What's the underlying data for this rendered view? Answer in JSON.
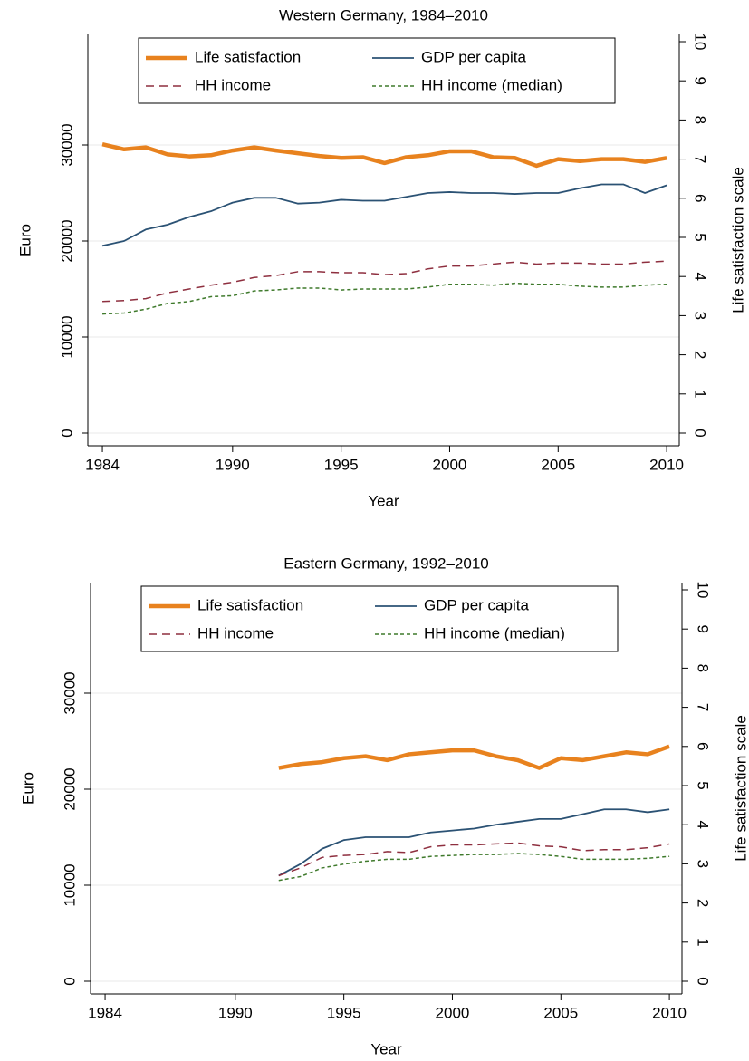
{
  "chart_data": [
    {
      "type": "line",
      "title": "Western Germany, 1984–2010",
      "x_label": "Year",
      "y_label": "Euro",
      "y2_label": "Life satisfaction scale",
      "x": [
        1984,
        1985,
        1986,
        1987,
        1988,
        1989,
        1990,
        1991,
        1992,
        1993,
        1994,
        1995,
        1996,
        1997,
        1998,
        1999,
        2000,
        2001,
        2002,
        2003,
        2004,
        2005,
        2006,
        2007,
        2008,
        2009,
        2010
      ],
      "xlim": [
        1983.33,
        2010.58
      ],
      "xticks": [
        1984,
        1990,
        1995,
        2000,
        2005,
        2010
      ],
      "ylim": [
        -1320,
        41510
      ],
      "yticks": [
        0,
        10000,
        20000,
        30000
      ],
      "y2lim": [
        -0.324,
        10.185
      ],
      "y2ticks": [
        0,
        1,
        2,
        3,
        4,
        5,
        6,
        7,
        8,
        9,
        10
      ],
      "grid": true,
      "legend": "top",
      "series": [
        {
          "name": "Life satisfaction",
          "color": "#e8821e",
          "axis": "y2",
          "values": [
            7.38,
            7.25,
            7.3,
            7.12,
            7.07,
            7.1,
            7.22,
            7.3,
            7.22,
            7.15,
            7.08,
            7.03,
            7.05,
            6.9,
            7.05,
            7.1,
            7.2,
            7.2,
            7.05,
            7.03,
            6.83,
            7.0,
            6.95,
            7.0,
            7.0,
            6.93,
            7.03
          ]
        },
        {
          "name": "GDP per capita",
          "color": "#2b5274",
          "values": [
            19500,
            20000,
            21200,
            21700,
            22500,
            23100,
            24000,
            24500,
            24500,
            23900,
            24000,
            24300,
            24200,
            24200,
            24600,
            25000,
            25100,
            25000,
            25000,
            24900,
            25000,
            25000,
            25500,
            25900,
            25900,
            25000,
            25800
          ]
        },
        {
          "name": "HH income",
          "color": "#8e2f3f",
          "values": [
            13700,
            13800,
            14000,
            14600,
            15000,
            15400,
            15700,
            16200,
            16400,
            16800,
            16800,
            16700,
            16700,
            16500,
            16600,
            17100,
            17400,
            17400,
            17600,
            17800,
            17600,
            17700,
            17700,
            17600,
            17600,
            17800,
            17900
          ]
        },
        {
          "name": "HH income (median)",
          "color": "#3f7a2c",
          "values": [
            12400,
            12500,
            12900,
            13500,
            13700,
            14200,
            14300,
            14800,
            14900,
            15100,
            15100,
            14900,
            15000,
            15000,
            15000,
            15200,
            15500,
            15500,
            15400,
            15600,
            15500,
            15500,
            15300,
            15200,
            15200,
            15400,
            15500
          ]
        }
      ]
    },
    {
      "type": "line",
      "title": "Eastern Germany, 1992–2010",
      "x_label": "Year",
      "y_label": "Euro",
      "y2_label": "Life satisfaction scale",
      "x": [
        1992,
        1993,
        1994,
        1995,
        1996,
        1997,
        1998,
        1999,
        2000,
        2001,
        2002,
        2003,
        2004,
        2005,
        2006,
        2007,
        2008,
        2009,
        2010
      ],
      "xlim": [
        1983.33,
        2010.58
      ],
      "xticks": [
        1984,
        1990,
        1995,
        2000,
        2005,
        2010
      ],
      "ylim": [
        -1320,
        41510
      ],
      "yticks": [
        0,
        10000,
        20000,
        30000
      ],
      "y2lim": [
        -0.324,
        10.185
      ],
      "y2ticks": [
        0,
        1,
        2,
        3,
        4,
        5,
        6,
        7,
        8,
        9,
        10
      ],
      "grid": true,
      "legend": "top",
      "series": [
        {
          "name": "Life satisfaction",
          "color": "#e8821e",
          "axis": "y2",
          "values": [
            5.45,
            5.55,
            5.6,
            5.7,
            5.75,
            5.65,
            5.8,
            5.85,
            5.9,
            5.9,
            5.75,
            5.65,
            5.45,
            5.7,
            5.65,
            5.75,
            5.85,
            5.8,
            6.0
          ]
        },
        {
          "name": "GDP per capita",
          "color": "#2b5274",
          "values": [
            11000,
            12200,
            13800,
            14700,
            15000,
            15000,
            15000,
            15500,
            15700,
            15900,
            16300,
            16600,
            16900,
            16900,
            17400,
            17900,
            17900,
            17600,
            17900
          ]
        },
        {
          "name": "HH income",
          "color": "#8e2f3f",
          "values": [
            11000,
            11800,
            12900,
            13100,
            13200,
            13500,
            13400,
            14000,
            14200,
            14200,
            14300,
            14400,
            14100,
            14000,
            13600,
            13700,
            13700,
            13900,
            14300
          ]
        },
        {
          "name": "HH income (median)",
          "color": "#3f7a2c",
          "values": [
            10500,
            10900,
            11800,
            12200,
            12500,
            12700,
            12700,
            13000,
            13100,
            13200,
            13200,
            13300,
            13200,
            13000,
            12700,
            12700,
            12700,
            12800,
            13000
          ]
        }
      ]
    }
  ]
}
